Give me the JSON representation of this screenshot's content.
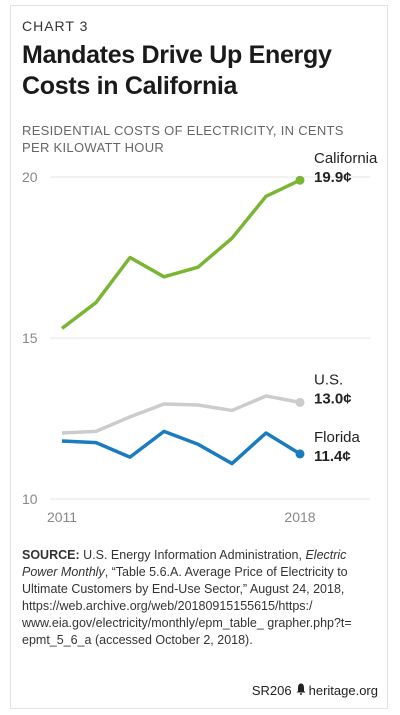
{
  "chart_label": "CHART 3",
  "title": "Mandates Drive Up Energy Costs in California",
  "subtitle": "RESIDENTIAL COSTS OF ELECTRICITY, IN CENTS PER KILOWATT HOUR",
  "chart_data": {
    "type": "line",
    "x": [
      2011,
      2012,
      2013,
      2014,
      2015,
      2016,
      2017,
      2018
    ],
    "xticks": [
      "2011",
      "2018"
    ],
    "yticks": [
      "20",
      "15",
      "10"
    ],
    "ylim": [
      10,
      20
    ],
    "grid": true,
    "series": [
      {
        "name": "California",
        "end_label": "19.9¢",
        "color": "#7ab533",
        "values": [
          15.3,
          16.1,
          17.5,
          16.9,
          17.2,
          18.1,
          19.4,
          19.9
        ]
      },
      {
        "name": "U.S.",
        "end_label": "13.0¢",
        "color": "#cccccc",
        "values": [
          12.05,
          12.1,
          12.55,
          12.95,
          12.92,
          12.75,
          13.2,
          13.0
        ]
      },
      {
        "name": "Florida",
        "end_label": "11.4¢",
        "color": "#1a7bbf",
        "values": [
          11.8,
          11.75,
          11.3,
          12.1,
          11.7,
          11.1,
          12.05,
          11.4
        ]
      }
    ]
  },
  "source": {
    "label": "SOURCE:",
    "text_1": " U.S. Energy Information Administration, ",
    "publication": "Electric Power Monthly",
    "text_2": ", “Table 5.6.A. Average Price of Electricity to Ultimate Customers by End-Use Sector,” August 24, 2018, https://web.archive.org/web/20180915155615/https:/ www.eia.gov/electricity/monthly/epm_table_ grapher.php?t= epmt_5_6_a (accessed October 2, 2018)."
  },
  "footer": {
    "code": "SR206",
    "bell_icon": "liberty-bell-icon",
    "site": "heritage.org"
  }
}
